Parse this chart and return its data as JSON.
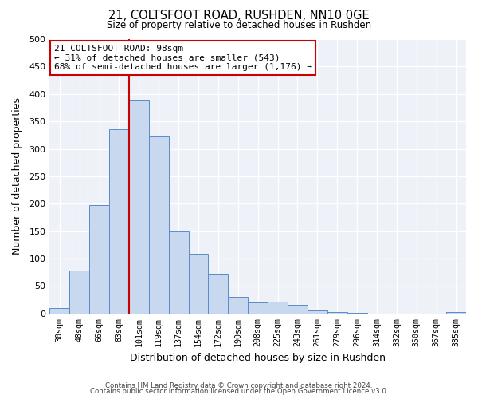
{
  "title": "21, COLTSFOOT ROAD, RUSHDEN, NN10 0GE",
  "subtitle": "Size of property relative to detached houses in Rushden",
  "xlabel": "Distribution of detached houses by size in Rushden",
  "ylabel": "Number of detached properties",
  "bar_color": "#c8d8ee",
  "bar_edge_color": "#5b8cc8",
  "vline_color": "#cc0000",
  "categories": [
    "30sqm",
    "48sqm",
    "66sqm",
    "83sqm",
    "101sqm",
    "119sqm",
    "137sqm",
    "154sqm",
    "172sqm",
    "190sqm",
    "208sqm",
    "225sqm",
    "243sqm",
    "261sqm",
    "279sqm",
    "296sqm",
    "314sqm",
    "332sqm",
    "350sqm",
    "367sqm",
    "385sqm"
  ],
  "values": [
    10,
    78,
    197,
    335,
    390,
    323,
    150,
    109,
    73,
    30,
    20,
    21,
    15,
    6,
    2,
    1,
    0,
    0,
    0,
    0,
    3
  ],
  "ylim": [
    0,
    500
  ],
  "yticks": [
    0,
    50,
    100,
    150,
    200,
    250,
    300,
    350,
    400,
    450,
    500
  ],
  "annotation_title": "21 COLTSFOOT ROAD: 98sqm",
  "annotation_line1": "← 31% of detached houses are smaller (543)",
  "annotation_line2": "68% of semi-detached houses are larger (1,176) →",
  "footer1": "Contains HM Land Registry data © Crown copyright and database right 2024.",
  "footer2": "Contains public sector information licensed under the Open Government Licence v3.0.",
  "background_color": "#ffffff",
  "plot_bg_color": "#eef2f8",
  "grid_color": "#ffffff"
}
